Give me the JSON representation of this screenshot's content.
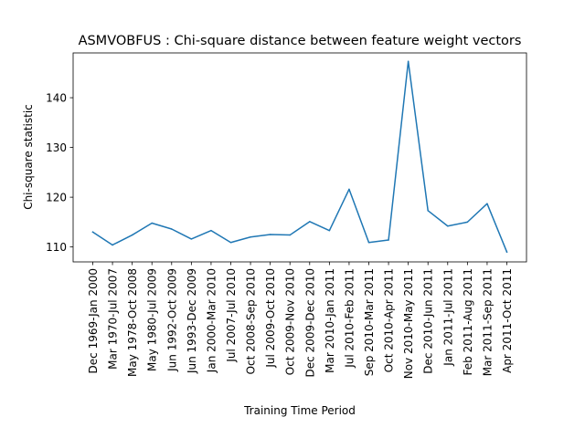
{
  "chart_data": {
    "type": "line",
    "title": "ASMVOBFUS : Chi-square distance between feature weight vectors",
    "xlabel": "Training Time Period",
    "ylabel": "Chi-square statistic",
    "categories": [
      "Dec 1969-Jan 2000",
      "Mar 1970-Jul 2007",
      "May 1978-Oct 2008",
      "May 1980-Jul 2009",
      "Jun 1992-Oct 2009",
      "Jun 1993-Dec 2009",
      "Jan 2000-Mar 2010",
      "Jul 2007-Jul 2010",
      "Oct 2008-Sep 2010",
      "Jul 2009-Oct 2010",
      "Oct 2009-Nov 2010",
      "Dec 2009-Dec 2010",
      "Mar 2010-Jan 2011",
      "Jul 2010-Feb 2011",
      "Sep 2010-Mar 2011",
      "Oct 2010-Apr 2011",
      "Nov 2010-May 2011",
      "Dec 2010-Jun 2011",
      "Jan 2011-Jul 2011",
      "Feb 2011-Aug 2011",
      "Mar 2011-Sep 2011",
      "Apr 2011-Oct 2011"
    ],
    "series": [
      {
        "values": [
          113.0,
          110.4,
          112.4,
          114.8,
          113.6,
          111.6,
          113.3,
          110.9,
          112.0,
          112.5,
          112.4,
          115.1,
          113.3,
          121.6,
          110.9,
          111.4,
          147.3,
          117.3,
          114.2,
          115.0,
          118.7,
          109.0
        ],
        "color": "#1f77b4"
      }
    ],
    "ylim": [
      107.0,
      149.0
    ],
    "yticks": [
      110,
      120,
      130,
      140
    ],
    "grid": false
  }
}
